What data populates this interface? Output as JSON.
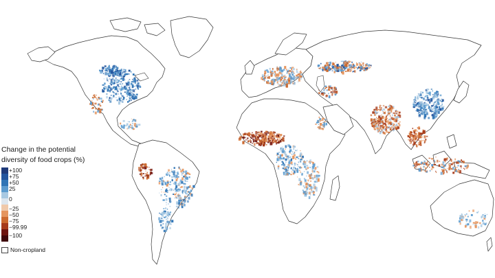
{
  "legend": {
    "title_line1": "Change in the potential",
    "title_line2": "diversity of food crops (%)",
    "colors": [
      "#1f3a7a",
      "#23559e",
      "#2e74b5",
      "#5b9bcf",
      "#a9c9e2",
      "#dde6ee",
      "#f0c9aa",
      "#e5955e",
      "#cc6a2f",
      "#a63a1a",
      "#6e1410",
      "#3f070b"
    ],
    "labels": [
      "+100",
      "+75",
      "+50",
      "25",
      "0",
      "−25",
      "−50",
      "−75",
      "−99.99",
      "−100"
    ],
    "noncropland_label": "Non-cropland"
  },
  "map": {
    "land_color": "#ffffff",
    "outline_color": "#333333",
    "colors": {
      "strong_gain": "#23559e",
      "gain": "#2e74b5",
      "mild_gain": "#5b9bcf",
      "neutral": "#a9c9e2",
      "mild_loss": "#e5955e",
      "loss": "#cc6a2f",
      "strong_loss": "#a63a1a",
      "total_loss": "#6e1410"
    }
  }
}
